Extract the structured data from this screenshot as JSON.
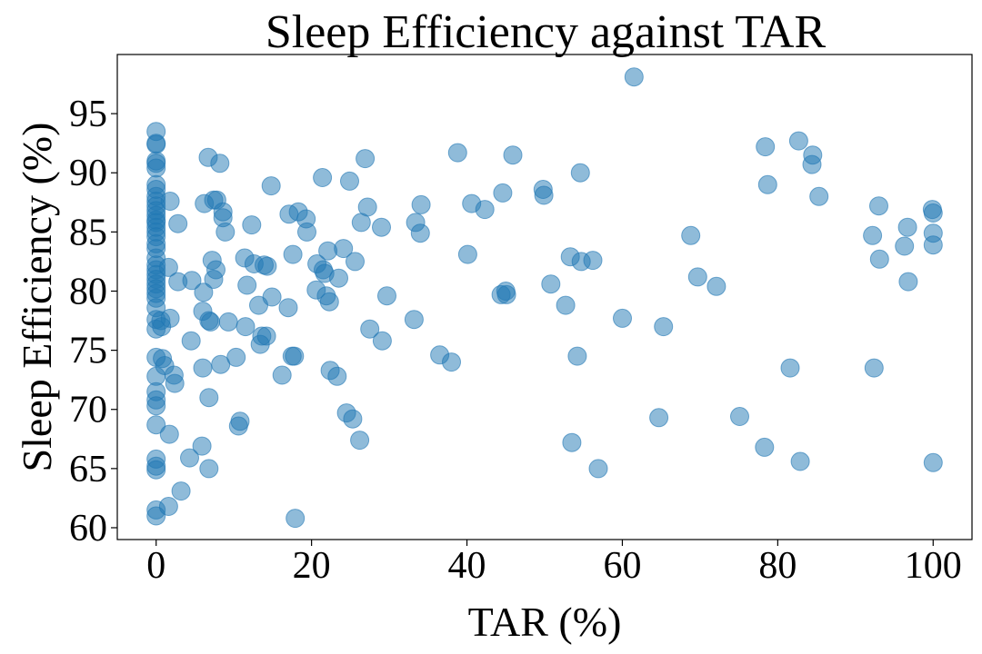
{
  "chart_data": {
    "type": "scatter",
    "title": "Sleep Efficiency against TAR",
    "xlabel": "TAR (%)",
    "ylabel": "Sleep Efficiency (%)",
    "xlim": [
      -5,
      105
    ],
    "ylim": [
      59,
      100
    ],
    "xticks": [
      0,
      20,
      40,
      60,
      80,
      100
    ],
    "yticks": [
      60,
      65,
      70,
      75,
      80,
      85,
      90,
      95
    ],
    "grid": false,
    "marker_color": "#1f77b4",
    "marker_alpha": 0.5,
    "points": [
      [
        0,
        93.5
      ],
      [
        0,
        92.5
      ],
      [
        0,
        92.4
      ],
      [
        0,
        91.0
      ],
      [
        0,
        90.8
      ],
      [
        0,
        90.4
      ],
      [
        0,
        89.0
      ],
      [
        0,
        88.6
      ],
      [
        0,
        88.0
      ],
      [
        0,
        87.6
      ],
      [
        0,
        87.2
      ],
      [
        0,
        86.8
      ],
      [
        0,
        86.4
      ],
      [
        0,
        86.0
      ],
      [
        0,
        85.8
      ],
      [
        0,
        85.4
      ],
      [
        0,
        85.0
      ],
      [
        0,
        84.6
      ],
      [
        0,
        84.0
      ],
      [
        0,
        83.6
      ],
      [
        0,
        82.8
      ],
      [
        0,
        82.2
      ],
      [
        0,
        81.8
      ],
      [
        0,
        81.4
      ],
      [
        0,
        81.0
      ],
      [
        0,
        80.6
      ],
      [
        0,
        80.2
      ],
      [
        0,
        79.8
      ],
      [
        0,
        79.4
      ],
      [
        0,
        78.6
      ],
      [
        0,
        77.6
      ],
      [
        0,
        76.8
      ],
      [
        0,
        74.4
      ],
      [
        0,
        72.8
      ],
      [
        0,
        71.5
      ],
      [
        0,
        70.8
      ],
      [
        0,
        70.3
      ],
      [
        0,
        68.7
      ],
      [
        0,
        65.8
      ],
      [
        0,
        65.2
      ],
      [
        0,
        64.9
      ],
      [
        0,
        61.5
      ],
      [
        0,
        61.0
      ],
      [
        0.6,
        77.5
      ],
      [
        0.7,
        77.0
      ],
      [
        0.8,
        74.3
      ],
      [
        1.1,
        73.7
      ],
      [
        1.6,
        82.0
      ],
      [
        1.7,
        67.9
      ],
      [
        1.6,
        61.8
      ],
      [
        1.8,
        87.6
      ],
      [
        1.8,
        77.7
      ],
      [
        2.3,
        72.9
      ],
      [
        2.4,
        72.2
      ],
      [
        2.8,
        85.7
      ],
      [
        2.8,
        80.8
      ],
      [
        3.2,
        63.1
      ],
      [
        4.3,
        65.9
      ],
      [
        4.5,
        75.8
      ],
      [
        4.6,
        80.9
      ],
      [
        5.9,
        66.9
      ],
      [
        6.0,
        73.5
      ],
      [
        6.0,
        78.3
      ],
      [
        6.1,
        79.9
      ],
      [
        6.2,
        87.4
      ],
      [
        6.7,
        91.3
      ],
      [
        6.8,
        71.0
      ],
      [
        6.8,
        65.0
      ],
      [
        6.8,
        77.5
      ],
      [
        7.0,
        77.4
      ],
      [
        7.2,
        82.6
      ],
      [
        7.4,
        81.0
      ],
      [
        7.4,
        87.7
      ],
      [
        7.7,
        81.8
      ],
      [
        7.8,
        87.7
      ],
      [
        8.2,
        90.8
      ],
      [
        8.3,
        73.8
      ],
      [
        8.6,
        86.7
      ],
      [
        8.6,
        86.2
      ],
      [
        8.9,
        85.0
      ],
      [
        9.3,
        77.4
      ],
      [
        10.3,
        74.4
      ],
      [
        10.6,
        68.6
      ],
      [
        10.8,
        69.0
      ],
      [
        11.4,
        82.8
      ],
      [
        11.5,
        77.0
      ],
      [
        11.7,
        80.5
      ],
      [
        12.3,
        85.6
      ],
      [
        12.6,
        82.3
      ],
      [
        13.2,
        78.8
      ],
      [
        13.4,
        75.5
      ],
      [
        13.6,
        76.2
      ],
      [
        13.9,
        82.2
      ],
      [
        14.2,
        76.2
      ],
      [
        14.3,
        82.1
      ],
      [
        14.9,
        79.5
      ],
      [
        14.8,
        88.9
      ],
      [
        16.2,
        72.9
      ],
      [
        17.0,
        78.6
      ],
      [
        17.1,
        86.5
      ],
      [
        17.5,
        74.5
      ],
      [
        17.6,
        83.1
      ],
      [
        17.8,
        74.5
      ],
      [
        17.9,
        60.8
      ],
      [
        18.3,
        86.7
      ],
      [
        19.3,
        86.1
      ],
      [
        19.4,
        85.0
      ],
      [
        20.6,
        80.1
      ],
      [
        20.7,
        82.3
      ],
      [
        21.4,
        89.6
      ],
      [
        21.5,
        81.8
      ],
      [
        21.7,
        81.5
      ],
      [
        21.9,
        79.6
      ],
      [
        22.1,
        83.4
      ],
      [
        22.3,
        79.1
      ],
      [
        22.4,
        73.3
      ],
      [
        23.3,
        72.8
      ],
      [
        23.5,
        81.1
      ],
      [
        24.1,
        83.6
      ],
      [
        24.5,
        69.7
      ],
      [
        24.9,
        89.3
      ],
      [
        25.3,
        69.2
      ],
      [
        25.6,
        82.5
      ],
      [
        26.2,
        67.4
      ],
      [
        26.4,
        85.8
      ],
      [
        26.9,
        91.2
      ],
      [
        27.2,
        87.1
      ],
      [
        27.5,
        76.8
      ],
      [
        29.0,
        85.4
      ],
      [
        29.1,
        75.8
      ],
      [
        29.7,
        79.6
      ],
      [
        33.2,
        77.6
      ],
      [
        33.4,
        85.8
      ],
      [
        34.0,
        84.9
      ],
      [
        34.1,
        87.3
      ],
      [
        36.5,
        74.6
      ],
      [
        38.0,
        74.0
      ],
      [
        38.8,
        91.7
      ],
      [
        40.1,
        83.1
      ],
      [
        40.6,
        87.4
      ],
      [
        42.3,
        86.9
      ],
      [
        44.4,
        79.7
      ],
      [
        44.6,
        88.3
      ],
      [
        45.0,
        80.0
      ],
      [
        45.1,
        79.7
      ],
      [
        45.9,
        91.5
      ],
      [
        49.8,
        88.6
      ],
      [
        49.9,
        88.1
      ],
      [
        50.8,
        80.6
      ],
      [
        52.7,
        78.8
      ],
      [
        53.3,
        82.9
      ],
      [
        53.5,
        67.2
      ],
      [
        54.2,
        74.5
      ],
      [
        54.6,
        90.0
      ],
      [
        54.7,
        82.5
      ],
      [
        56.2,
        82.6
      ],
      [
        56.9,
        65.0
      ],
      [
        60.0,
        77.7
      ],
      [
        61.5,
        98.1
      ],
      [
        64.7,
        69.3
      ],
      [
        65.3,
        77.0
      ],
      [
        68.8,
        84.7
      ],
      [
        69.7,
        81.2
      ],
      [
        72.1,
        80.4
      ],
      [
        75.1,
        69.4
      ],
      [
        78.3,
        66.8
      ],
      [
        78.4,
        92.2
      ],
      [
        78.7,
        89.0
      ],
      [
        81.6,
        73.5
      ],
      [
        82.7,
        92.7
      ],
      [
        82.9,
        65.6
      ],
      [
        84.4,
        90.7
      ],
      [
        84.5,
        91.5
      ],
      [
        85.3,
        88.0
      ],
      [
        92.2,
        84.7
      ],
      [
        92.4,
        73.5
      ],
      [
        93.0,
        87.2
      ],
      [
        93.1,
        82.7
      ],
      [
        96.3,
        83.8
      ],
      [
        96.7,
        85.4
      ],
      [
        96.8,
        80.8
      ],
      [
        99.9,
        86.9
      ],
      [
        100,
        86.6
      ],
      [
        100,
        84.9
      ],
      [
        100,
        83.9
      ],
      [
        100,
        65.5
      ]
    ]
  }
}
